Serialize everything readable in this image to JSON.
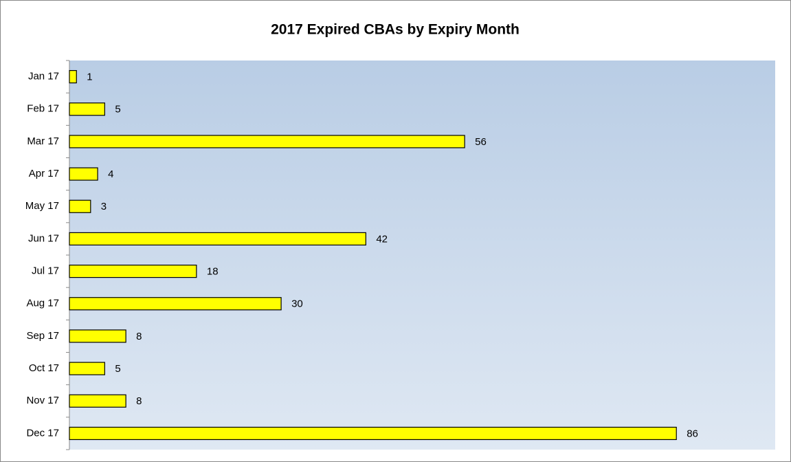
{
  "chart_data": {
    "type": "bar",
    "orientation": "horizontal",
    "title": "2017 Expired CBAs by Expiry Month",
    "categories": [
      "Jan 17",
      "Feb 17",
      "Mar 17",
      "Apr 17",
      "May 17",
      "Jun 17",
      "Jul 17",
      "Aug 17",
      "Sep 17",
      "Oct 17",
      "Nov 17",
      "Dec 17"
    ],
    "values": [
      1,
      5,
      56,
      4,
      3,
      42,
      18,
      30,
      8,
      5,
      8,
      86
    ],
    "color": "#ffff00",
    "xlim": [
      0,
      100
    ],
    "grid": false
  }
}
